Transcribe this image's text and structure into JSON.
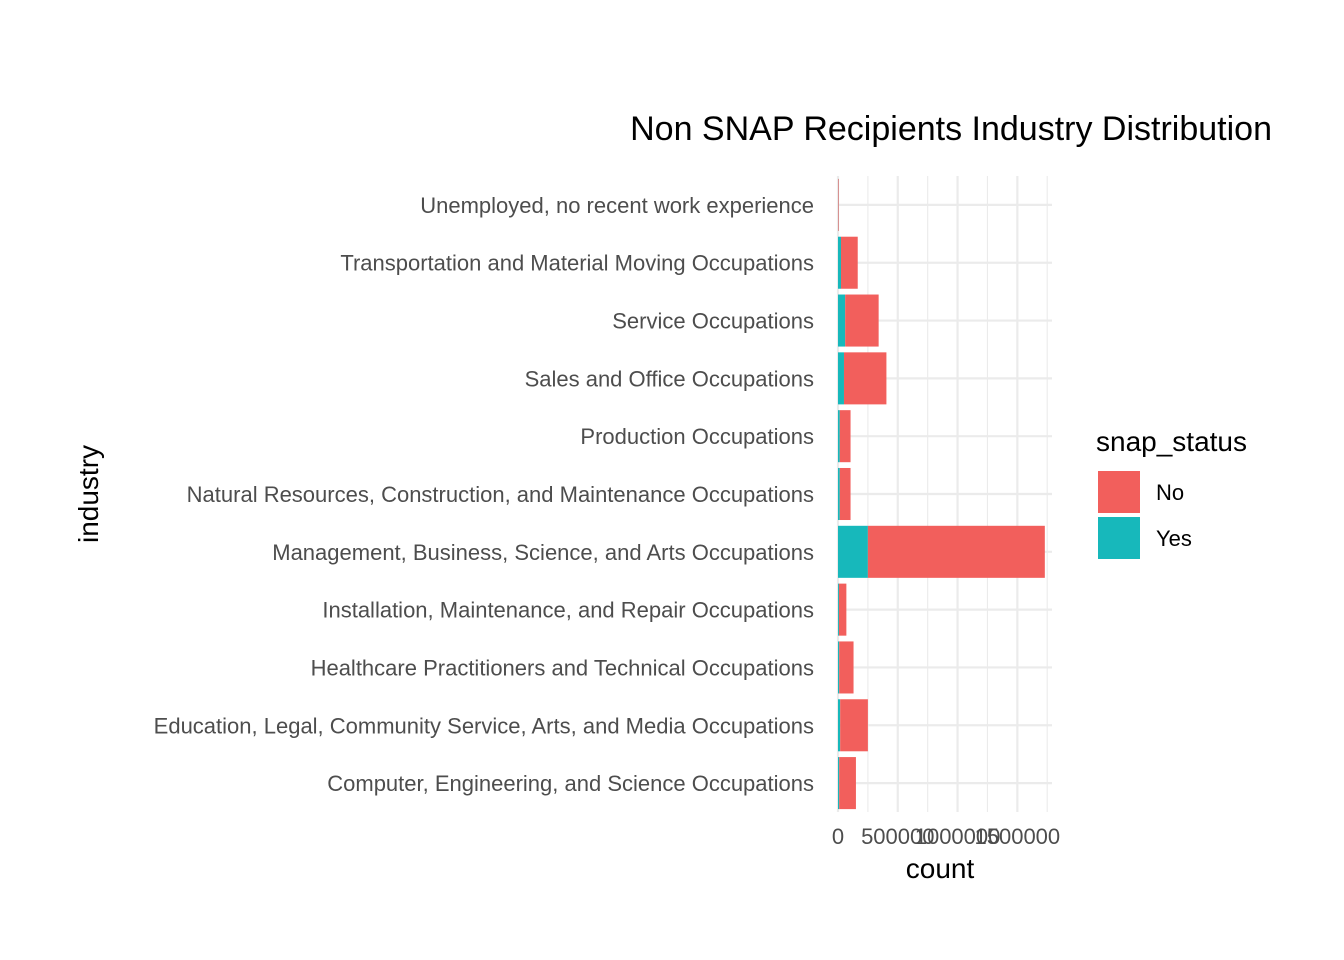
{
  "chart_data": {
    "type": "bar",
    "orientation": "horizontal",
    "stacked": true,
    "title": "Non SNAP Recipients Industry Distribution",
    "xlabel": "count",
    "ylabel": "industry",
    "categories": [
      "Computer, Engineering, and Science Occupations",
      "Education, Legal, Community Service, Arts, and Media Occupations",
      "Healthcare Practitioners and Technical Occupations",
      "Installation, Maintenance, and Repair Occupations",
      "Management, Business, Science, and Arts Occupations",
      "Natural Resources, Construction, and Maintenance Occupations",
      "Production Occupations",
      "Sales and Office Occupations",
      "Service Occupations",
      "Transportation and Material Moving Occupations",
      "Unemployed, no recent work experience"
    ],
    "series": [
      {
        "name": "Yes",
        "color": "#17b8bb",
        "values": [
          10000,
          18000,
          10000,
          8000,
          250000,
          15000,
          15000,
          50000,
          60000,
          25000,
          2000
        ]
      },
      {
        "name": "No",
        "color": "#f25f5c",
        "values": [
          140000,
          232000,
          120000,
          62000,
          1480000,
          90000,
          90000,
          355000,
          280000,
          140000,
          5000
        ]
      }
    ],
    "xlim": [
      0,
      1790000
    ],
    "xticks": [
      0,
      500000,
      1000000,
      1500000
    ],
    "xtick_labels": [
      "0",
      "500000",
      "1000000",
      "1500000"
    ],
    "grid": true,
    "legend": {
      "title": "snap_status",
      "position": "right",
      "entries": [
        {
          "label": "No",
          "color": "#f25f5c"
        },
        {
          "label": "Yes",
          "color": "#17b8bb"
        }
      ]
    }
  }
}
